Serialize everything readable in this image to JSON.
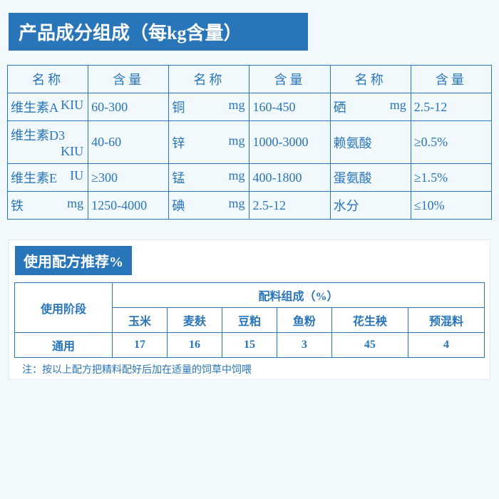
{
  "header": "产品成分组成（每kg含量）",
  "compHeaders": {
    "name": "名称",
    "value": "含量"
  },
  "comp": [
    [
      {
        "n": "维生素A",
        "u": "KIU",
        "v": "60-300"
      },
      {
        "n": "铜",
        "u": "mg",
        "v": "160-450"
      },
      {
        "n": "硒",
        "u": "mg",
        "v": "2.5-12"
      }
    ],
    [
      {
        "n": "维生素D3",
        "u": "KIU",
        "v": "40-60"
      },
      {
        "n": "锌",
        "u": "mg",
        "v": "1000-3000"
      },
      {
        "n": "赖氨酸",
        "u": "",
        "v": "≥0.5%"
      }
    ],
    [
      {
        "n": "维生素E",
        "u": "IU",
        "v": "≥300"
      },
      {
        "n": "锰",
        "u": "mg",
        "v": "400-1800"
      },
      {
        "n": "蛋氨酸",
        "u": "",
        "v": "≥1.5%"
      }
    ],
    [
      {
        "n": "铁",
        "u": "mg",
        "v": "1250-4000"
      },
      {
        "n": "碘",
        "u": "mg",
        "v": "2.5-12"
      },
      {
        "n": "水分",
        "u": "",
        "v": "≤10%"
      }
    ]
  ],
  "subHeader": "使用配方推荐%",
  "formula": {
    "stageLabel": "使用阶段",
    "groupLabel": "配料组成（%）",
    "cols": [
      "玉米",
      "麦麸",
      "豆粕",
      "鱼粉",
      "花生秧",
      "预混料"
    ],
    "rowLabel": "通用",
    "row": [
      "17",
      "16",
      "15",
      "3",
      "45",
      "4"
    ]
  },
  "note": "注：按以上配方把精料配好后加在适量的饲草中饲喂"
}
